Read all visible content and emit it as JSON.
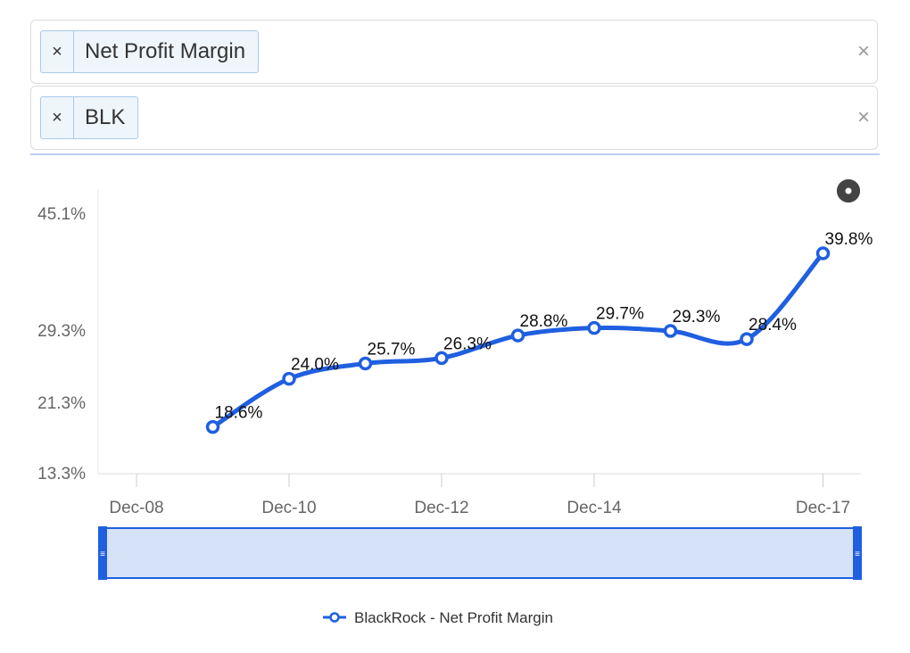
{
  "filters": {
    "metric": {
      "remove_label": "×",
      "value": "Net Profit Margin",
      "clear_label": "×"
    },
    "ticker": {
      "remove_label": "×",
      "value": "BLK",
      "clear_label": "×"
    }
  },
  "colors": {
    "series": "#1f5fe0",
    "navigator_fill": "#d6e2f7",
    "navigator_border": "#1f5fe0"
  },
  "chart_data": {
    "type": "line",
    "y_tick_labels": [
      "45.1%",
      "29.3%",
      "21.3%",
      "13.3%"
    ],
    "y_tick_values": [
      45.1,
      29.3,
      21.3,
      13.3
    ],
    "x_tick_labels": [
      "Dec-08",
      "Dec-10",
      "Dec-12",
      "Dec-14",
      "Dec-17"
    ],
    "x_tick_values": [
      "2008-12",
      "2010-12",
      "2012-12",
      "2014-12",
      "2017-12"
    ],
    "x_range": [
      "2008-05",
      "2018-03"
    ],
    "series": [
      {
        "name": "BlackRock - Net Profit Margin",
        "x": [
          "2009-12",
          "2010-12",
          "2011-12",
          "2012-12",
          "2013-12",
          "2014-12",
          "2015-12",
          "2016-12",
          "2017-12"
        ],
        "values": [
          18.6,
          24.0,
          25.7,
          26.3,
          28.8,
          29.7,
          29.3,
          28.4,
          39.8
        ],
        "labels": [
          "18.6%",
          "24.0%",
          "25.7%",
          "26.3%",
          "28.8%",
          "29.7%",
          "29.3%",
          "28.4%",
          "39.8%"
        ]
      }
    ],
    "grid": false,
    "legend": "bottom-center"
  },
  "settings_icon": "gear-icon",
  "navigator": {
    "left_handle": "≡",
    "right_handle": "≡"
  }
}
